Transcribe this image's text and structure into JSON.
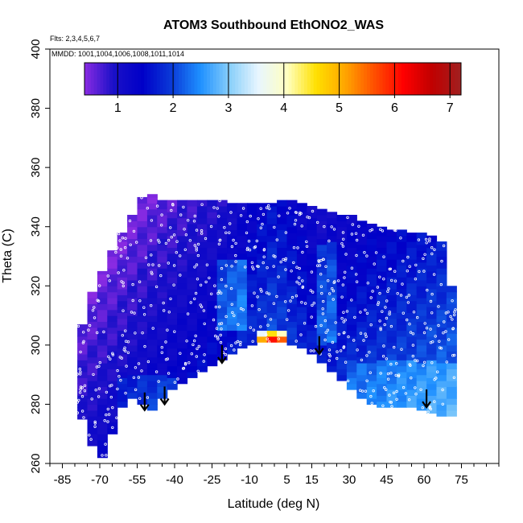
{
  "chart_data": {
    "type": "heatmap",
    "title": "ATOM3 Southbound EthONO2_WAS",
    "xlabel": "Latitude (deg N)",
    "ylabel": "Theta (C)",
    "xlim": [
      -90,
      90
    ],
    "ylim": [
      260,
      400
    ],
    "x_ticks": [
      -85,
      -70,
      -55,
      -40,
      -25,
      -10,
      5,
      15,
      30,
      45,
      60,
      75
    ],
    "x_tick_labels": [
      "-85",
      "-70",
      "-55",
      "-40",
      "-25",
      "-10",
      "5",
      "15",
      "30",
      "45",
      "60",
      "75"
    ],
    "y_ticks": [
      260,
      280,
      300,
      320,
      340,
      360,
      380,
      400
    ],
    "y_tick_labels": [
      "260",
      "280",
      "300",
      "320",
      "340",
      "360",
      "380",
      "400"
    ],
    "flights_note": "Flts: 2,3,4,5,6,7",
    "dates_note": "MMDD: 1001,1004,1006,1008,1011,1014",
    "colorbar": {
      "min": 0.4,
      "max": 7.2,
      "ticks": [
        1,
        2,
        3,
        4,
        5,
        6,
        7
      ],
      "tick_labels": [
        "1",
        "2",
        "3",
        "4",
        "5",
        "6",
        "7"
      ],
      "colors": [
        "#8a2be2",
        "#1a10c8",
        "#0000c8",
        "#0a3ad8",
        "#1e90ff",
        "#87cefa",
        "#e8f6ff",
        "#ffffc0",
        "#ffe000",
        "#ffa500",
        "#ff5000",
        "#ff0000",
        "#c00000",
        "#a02020"
      ]
    },
    "field": {
      "lat_bins": [
        -77,
        -73,
        -69,
        -65,
        -61,
        -57,
        -53,
        -49,
        -45,
        -41,
        -37,
        -33,
        -29,
        -25,
        -21,
        -17,
        -13,
        -9,
        -5,
        -1,
        3,
        7,
        11,
        15,
        19,
        23,
        27,
        31,
        35,
        39,
        43,
        47,
        51,
        55,
        59,
        63,
        67,
        71
      ],
      "bottom_theta": [
        275,
        266,
        262,
        270,
        279,
        282,
        280,
        278,
        282,
        285,
        287,
        289,
        291,
        293,
        295,
        297,
        299,
        300,
        301,
        301,
        301,
        300,
        299,
        297,
        294,
        291,
        288,
        285,
        282,
        280,
        279,
        279,
        279,
        279,
        278,
        277,
        276,
        276
      ],
      "top_theta": [
        307,
        318,
        325,
        332,
        338,
        344,
        350,
        351,
        349,
        349,
        349,
        349,
        349,
        349,
        349,
        348,
        348,
        348,
        348,
        348,
        349,
        349,
        348,
        347,
        346,
        345,
        344,
        344,
        342,
        341,
        340,
        339,
        339,
        338,
        338,
        337,
        335,
        320
      ]
    },
    "hotspot": {
      "lat_range": [
        -6,
        6
      ],
      "theta_range": [
        300,
        305
      ],
      "value": 6.3
    },
    "arrows_lat": [
      -52,
      -44,
      -21,
      18,
      61
    ],
    "arrows_theta": [
      284,
      286,
      300,
      303,
      285
    ]
  }
}
